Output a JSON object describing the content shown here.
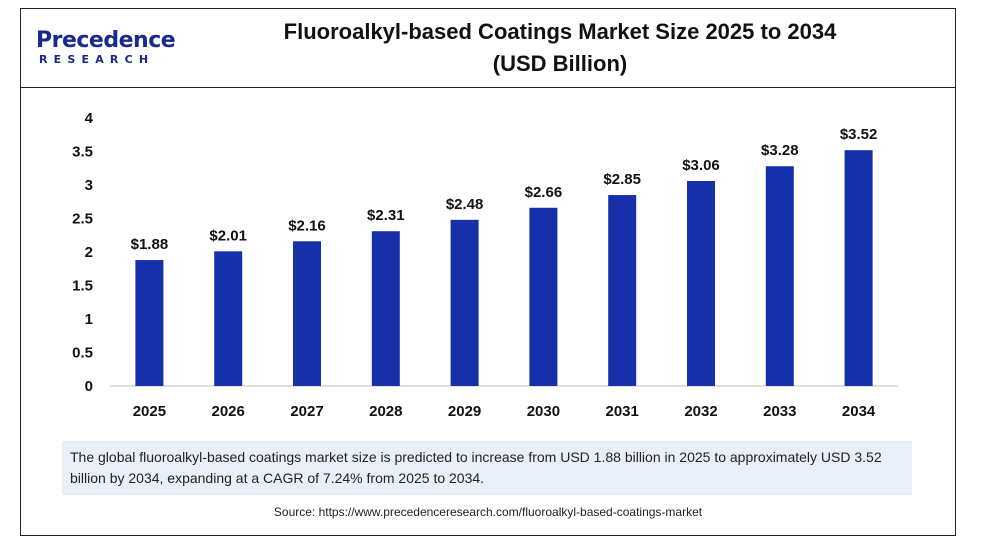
{
  "brand": {
    "name": "Precedence",
    "sub": "RESEARCH"
  },
  "title_line1": "Fluoroalkyl-based Coatings Market Size 2025 to 2034",
  "title_line2": "(USD Billion)",
  "note": "The global fluoroalkyl-based coatings market size is predicted to increase from USD 1.88 billion in 2025 to approximately USD 3.52 billion by 2034, expanding at a CAGR of 7.24% from 2025 to 2034.",
  "source": "Source: https://www.precedenceresearch.com/fluoroalkyl-based-coatings-market",
  "colors": {
    "bar": "#1530a8",
    "brand": "#1a2a8c"
  },
  "chart_data": {
    "type": "bar",
    "title": "Fluoroalkyl-based Coatings Market Size 2025 to 2034 (USD Billion)",
    "categories": [
      "2025",
      "2026",
      "2027",
      "2028",
      "2029",
      "2030",
      "2031",
      "2032",
      "2033",
      "2034"
    ],
    "values": [
      1.88,
      2.01,
      2.16,
      2.31,
      2.48,
      2.66,
      2.85,
      3.06,
      3.28,
      3.52
    ],
    "data_labels": [
      "$1.88",
      "$2.01",
      "$2.16",
      "$2.31",
      "$2.48",
      "$2.66",
      "$2.85",
      "$3.06",
      "$3.28",
      "$3.52"
    ],
    "y_ticks": [
      "0",
      "0.5",
      "1",
      "1.5",
      "2",
      "2.5",
      "3",
      "3.5",
      "4"
    ],
    "ylim": [
      0,
      4
    ],
    "grid": false,
    "legend": "none"
  }
}
